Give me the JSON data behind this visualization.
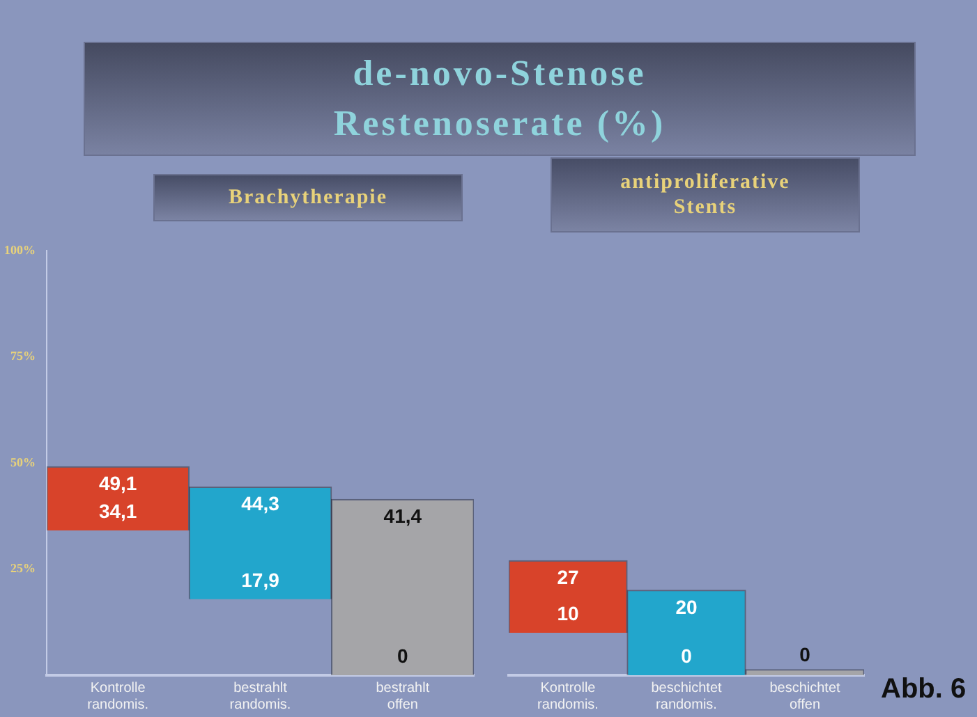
{
  "chart_data": [
    {
      "type": "bar",
      "title": "de-novo-Stenose\nRestenoserate (%)",
      "subtitle": "Brachytherapie",
      "categories": [
        "Kontrolle randomis.",
        "bestrahlt randomis.",
        "bestrahlt offen"
      ],
      "base": [
        34.1,
        17.9,
        0
      ],
      "values": [
        15,
        26.4,
        41.4
      ],
      "colors": [
        "#d8432a",
        "#22a6cc",
        "#a5a5a8"
      ],
      "ylim": [
        0,
        100
      ],
      "yticks": [
        {
          "value": 25,
          "label": "25%"
        },
        {
          "value": 50,
          "label": "50%"
        },
        {
          "value": 75,
          "label": "75%"
        },
        {
          "value": 100,
          "label": "100%"
        }
      ],
      "grid": false,
      "legend": false,
      "annotations": [
        {
          "text": "49,1",
          "x": "Kontrolle randomis.",
          "y": 49.1
        },
        {
          "text": "34,1",
          "x": "Kontrolle randomis.",
          "y": 34.1
        },
        {
          "text": "44,3",
          "x": "bestrahlt randomis.",
          "y": 44.3
        },
        {
          "text": "17,9",
          "x": "bestrahlt randomis.",
          "y": 17.9
        },
        {
          "text": "41,4",
          "x": "bestrahlt offen",
          "y": 41.4
        },
        {
          "text": "0",
          "x": "bestrahlt offen",
          "y": 0
        }
      ]
    },
    {
      "type": "bar",
      "subtitle": "antiproliferative\nStents",
      "categories": [
        "Kontrolle randomis.",
        "beschichtet randomis.",
        "beschichtet offen"
      ],
      "base": [
        10,
        0,
        0
      ],
      "values": [
        17,
        20,
        0
      ],
      "colors": [
        "#d8432a",
        "#22a6cc",
        "#a5a5a8"
      ],
      "ylim": [
        0,
        100
      ],
      "tick_labels": "x",
      "grid": false,
      "legend": false,
      "annotations": [
        {
          "text": "27",
          "x": "Kontrolle randomis.",
          "y": 27
        },
        {
          "text": "10",
          "x": "Kontrolle randomis.",
          "y": 10
        },
        {
          "text": "20",
          "x": "beschichtet randomis.",
          "y": 20
        },
        {
          "text": "0",
          "x": "beschichtet randomis.",
          "y": 0
        },
        {
          "text": "0",
          "x": "beschichtet offen",
          "y": 0
        },
        "Abb. 6"
      ]
    }
  ]
}
